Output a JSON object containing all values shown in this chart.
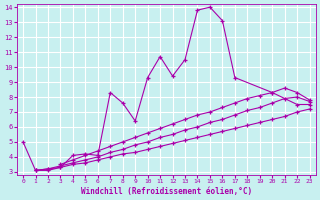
{
  "xlabel": "Windchill (Refroidissement éolien,°C)",
  "bg_color": "#c8f0f0",
  "grid_color": "#ffffff",
  "line_color": "#aa00aa",
  "xlim": [
    -0.5,
    23.5
  ],
  "ylim": [
    2.8,
    14.2
  ],
  "xticks": [
    0,
    1,
    2,
    3,
    4,
    5,
    6,
    7,
    8,
    9,
    10,
    11,
    12,
    13,
    14,
    15,
    16,
    17,
    18,
    19,
    20,
    21,
    22,
    23
  ],
  "yticks": [
    3,
    4,
    5,
    6,
    7,
    8,
    9,
    10,
    11,
    12,
    13,
    14
  ],
  "series": [
    {
      "comment": "main zigzag line",
      "x": [
        0,
        1,
        2,
        3,
        4,
        5,
        6,
        7,
        8,
        9,
        10,
        11,
        12,
        13,
        14,
        15,
        16,
        17,
        20,
        22,
        23
      ],
      "y": [
        5.0,
        3.1,
        3.1,
        3.3,
        4.1,
        4.2,
        4.1,
        8.3,
        7.6,
        6.4,
        9.3,
        10.7,
        9.4,
        10.5,
        13.8,
        14.0,
        13.1,
        9.3,
        8.3,
        7.5,
        7.5
      ]
    },
    {
      "comment": "linear line 1 - lowest slope",
      "x": [
        1,
        2,
        3,
        4,
        5,
        6,
        7,
        8,
        9,
        10,
        11,
        12,
        13,
        14,
        15,
        16,
        17,
        18,
        19,
        20,
        21,
        22,
        23
      ],
      "y": [
        3.1,
        3.2,
        3.3,
        3.5,
        3.6,
        3.8,
        4.0,
        4.2,
        4.3,
        4.5,
        4.7,
        4.9,
        5.1,
        5.3,
        5.5,
        5.7,
        5.9,
        6.1,
        6.3,
        6.5,
        6.7,
        7.0,
        7.2
      ]
    },
    {
      "comment": "linear line 2 - medium slope",
      "x": [
        1,
        2,
        3,
        4,
        5,
        6,
        7,
        8,
        9,
        10,
        11,
        12,
        13,
        14,
        15,
        16,
        17,
        18,
        19,
        20,
        21,
        22,
        23
      ],
      "y": [
        3.1,
        3.2,
        3.4,
        3.6,
        3.8,
        4.0,
        4.3,
        4.5,
        4.8,
        5.0,
        5.3,
        5.5,
        5.8,
        6.0,
        6.3,
        6.5,
        6.8,
        7.1,
        7.3,
        7.6,
        7.9,
        8.0,
        7.7
      ]
    },
    {
      "comment": "linear line 3 - steepest slope",
      "x": [
        3,
        4,
        5,
        6,
        7,
        8,
        9,
        10,
        11,
        12,
        13,
        14,
        15,
        16,
        17,
        18,
        19,
        20,
        21,
        22,
        23
      ],
      "y": [
        3.5,
        3.8,
        4.1,
        4.4,
        4.7,
        5.0,
        5.3,
        5.6,
        5.9,
        6.2,
        6.5,
        6.8,
        7.0,
        7.3,
        7.6,
        7.9,
        8.1,
        8.3,
        8.6,
        8.3,
        7.8
      ]
    }
  ]
}
